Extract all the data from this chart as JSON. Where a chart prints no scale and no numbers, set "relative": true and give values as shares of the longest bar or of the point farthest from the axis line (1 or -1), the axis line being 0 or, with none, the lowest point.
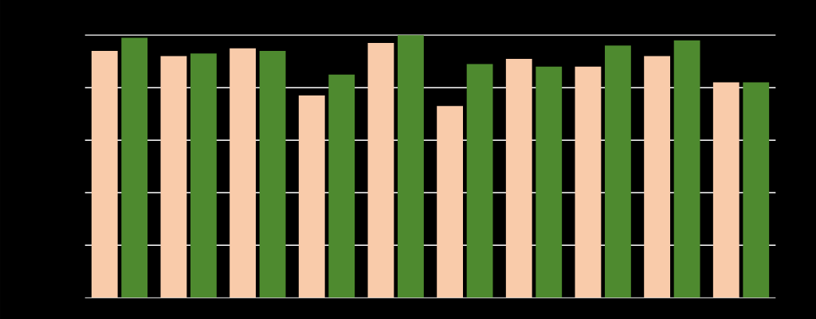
{
  "chart_data": {
    "type": "bar",
    "relative": true,
    "grid": "y",
    "categories": [
      null,
      null,
      null,
      null,
      null,
      null,
      null,
      null,
      null,
      null
    ],
    "series": [
      {
        "color": "#f9cbaa",
        "values": [
          0.94,
          0.92,
          0.95,
          0.77,
          0.97,
          0.73,
          0.91,
          0.88,
          0.92,
          0.82
        ]
      },
      {
        "color": "#4e8a2f",
        "values": [
          0.99,
          0.93,
          0.94,
          0.85,
          1.0,
          0.89,
          0.88,
          0.96,
          0.98,
          0.82
        ]
      }
    ]
  }
}
